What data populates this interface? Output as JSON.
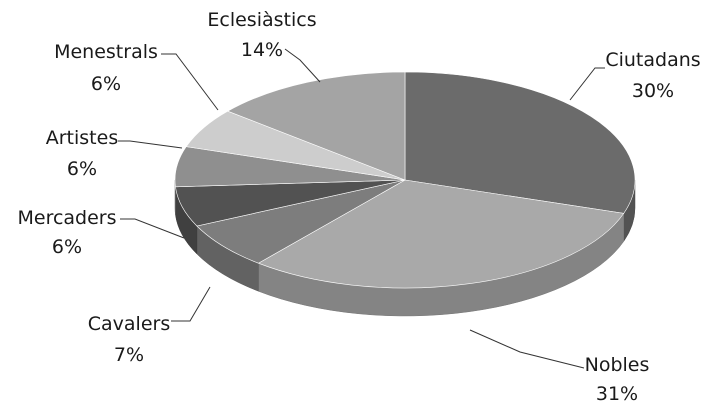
{
  "chart_data": {
    "type": "pie",
    "style": "3d",
    "legend": "none",
    "slices": [
      {
        "label": "Ciutadans",
        "value": 30,
        "display": "30%",
        "color": "#6b6b6b"
      },
      {
        "label": "Nobles",
        "value": 31,
        "display": "31%",
        "color": "#a9a9a9"
      },
      {
        "label": "Cavalers",
        "value": 7,
        "display": "7%",
        "color": "#7d7d7d"
      },
      {
        "label": "Mercaders",
        "value": 6,
        "display": "6%",
        "color": "#525252"
      },
      {
        "label": "Artistes",
        "value": 6,
        "display": "6%",
        "color": "#8f8f8f"
      },
      {
        "label": "Menestrals",
        "value": 6,
        "display": "6%",
        "color": "#cdcdcd"
      },
      {
        "label": "Eclesiàstics",
        "value": 14,
        "display": "14%",
        "color": "#a4a4a4"
      }
    ]
  }
}
